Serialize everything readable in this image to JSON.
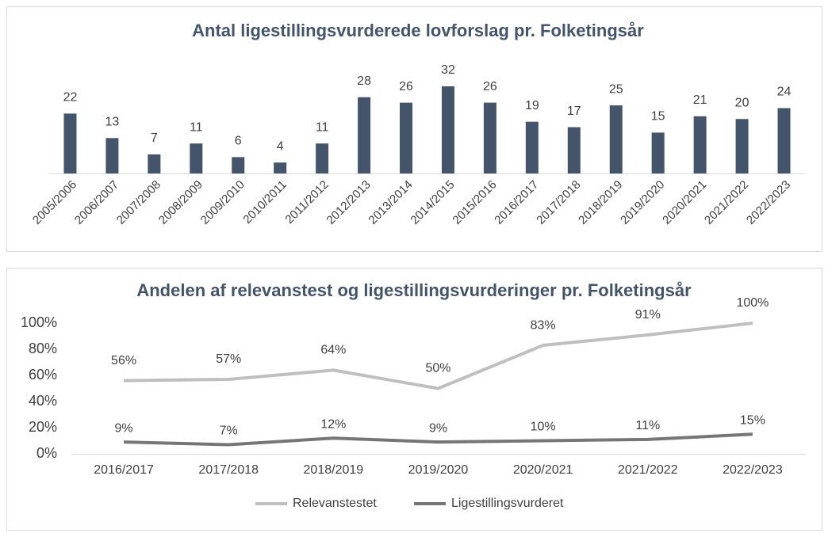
{
  "chart_data": [
    {
      "type": "bar",
      "title": "Antal ligestillingsvurderede lovforslag pr. Folketingsår",
      "categories": [
        "2005/2006",
        "2006/2007",
        "2007/2008",
        "2008/2009",
        "2009/2010",
        "2010/2011",
        "2011/2012",
        "2012/2013",
        "2013/2014",
        "2014/2015",
        "2015/2016",
        "2016/2017",
        "2017/2018",
        "2018/2019",
        "2019/2020",
        "2020/2021",
        "2021/2022",
        "2022/2023"
      ],
      "values": [
        22,
        13,
        7,
        11,
        6,
        4,
        11,
        28,
        26,
        32,
        26,
        19,
        17,
        25,
        15,
        21,
        20,
        24
      ],
      "color": "#44546a"
    },
    {
      "type": "line",
      "title": "Andelen af relevanstest og ligestillingsvurderinger pr. Folketingsår",
      "categories": [
        "2016/2017",
        "2017/2018",
        "2018/2019",
        "2019/2020",
        "2020/2021",
        "2021/2022",
        "2022/2023"
      ],
      "series": [
        {
          "name": "Relevanstestet",
          "color": "#bfbfbf",
          "values": [
            56,
            57,
            64,
            50,
            83,
            91,
            100
          ],
          "value_labels": [
            "56%",
            "57%",
            "64%",
            "50%",
            "83%",
            "91%",
            "100%"
          ]
        },
        {
          "name": "Ligestillingsvurderet",
          "color": "#767676",
          "values": [
            9,
            7,
            12,
            9,
            10,
            11,
            15
          ],
          "value_labels": [
            "9%",
            "7%",
            "12%",
            "9%",
            "10%",
            "11%",
            "15%"
          ]
        }
      ],
      "ylim": [
        0,
        100
      ],
      "yticks": [
        {
          "value": 0,
          "label": "0%"
        },
        {
          "value": 20,
          "label": "20%"
        },
        {
          "value": 40,
          "label": "40%"
        },
        {
          "value": 60,
          "label": "60%"
        },
        {
          "value": 80,
          "label": "80%"
        },
        {
          "value": 100,
          "label": "100%"
        }
      ],
      "legend": "bottom"
    }
  ]
}
